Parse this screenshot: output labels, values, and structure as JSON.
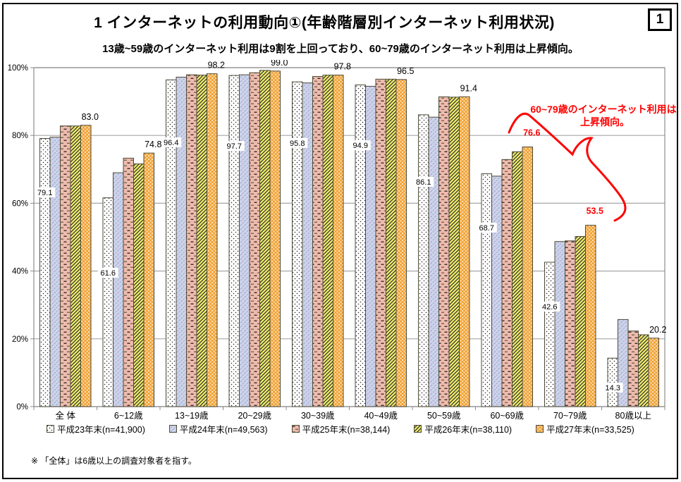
{
  "page": {
    "title": "1 インターネットの利用動向①(年齢階層別インターネット利用状況)",
    "page_number": "1",
    "subtitle": "13歳~59歳のインターネット利用は9割を上回っており、60~79歳のインターネット利用は上昇傾向。",
    "footnote": "※ 「全体」は6歳以上の調査対象者を指す。"
  },
  "chart_data": {
    "type": "bar",
    "title": "年齢階層別インターネット利用状況",
    "categories": [
      "全 体",
      "6~12歳",
      "13~19歳",
      "20~29歳",
      "30~39歳",
      "40~49歳",
      "50~59歳",
      "60~69歳",
      "70~79歳",
      "80歳以上"
    ],
    "series": [
      {
        "name": "平成23年末(n=41,900)",
        "fill": "#ffffff",
        "pattern": "dots-white",
        "values": [
          79.1,
          61.6,
          96.4,
          97.7,
          95.8,
          94.9,
          86.1,
          68.7,
          42.6,
          14.3
        ]
      },
      {
        "name": "平成24年末(n=49,563)",
        "fill": "#cdd3eb",
        "pattern": "diagonal-lavender",
        "values": [
          79.5,
          69.0,
          97.2,
          97.9,
          95.5,
          94.5,
          85.4,
          68.0,
          48.7,
          25.7
        ]
      },
      {
        "name": "平成25年末(n=38,144)",
        "fill": "#efbaad",
        "pattern": "dash-pink",
        "values": [
          82.8,
          73.3,
          97.9,
          98.5,
          97.4,
          96.6,
          91.4,
          72.9,
          48.9,
          22.3
        ]
      },
      {
        "name": "平成26年末(n=38,110)",
        "fill": "#ece96f",
        "pattern": "hatch-yellow",
        "values": [
          82.8,
          71.6,
          97.8,
          99.2,
          97.8,
          96.6,
          91.3,
          75.2,
          50.2,
          21.2
        ]
      },
      {
        "name": "平成27年末(n=33,525)",
        "fill": "#f1a236",
        "pattern": "weave-orange",
        "values": [
          83.0,
          74.8,
          98.2,
          99.0,
          97.8,
          96.5,
          91.4,
          76.6,
          53.5,
          20.2
        ]
      }
    ],
    "ylim": [
      0,
      100
    ],
    "yticks": [
      "0%",
      "20%",
      "40%",
      "60%",
      "80%",
      "100%"
    ],
    "grid": true,
    "legend_position": "bottom",
    "labels": {
      "labeled_series_indices": [
        0,
        4
      ],
      "inner_label_y_pct": [
        63.2,
        39.5,
        78.0,
        76.9,
        77.8,
        77.1,
        66.3,
        52.8,
        29.5,
        5.6
      ],
      "red_label_indices": [
        7,
        8
      ]
    },
    "annotation": {
      "line1": "60~79歳のインターネット利用は",
      "line2": "上昇傾向。",
      "color": "#ff0000"
    },
    "colors": {
      "grid": "#a6a6a6",
      "plot_border": "#8c8c8c",
      "bar_stroke": "#4d4a38",
      "label_red": "#ff0000",
      "text": "#000000"
    }
  }
}
